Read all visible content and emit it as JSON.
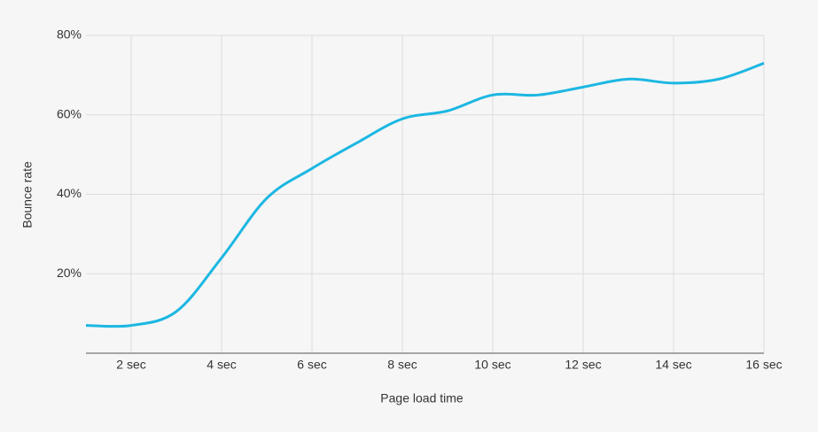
{
  "chart_data": {
    "type": "line",
    "x_label": "Page load time",
    "y_label": "Bounce rate",
    "x": [
      1,
      2,
      3,
      4,
      5,
      6,
      7,
      8,
      9,
      10,
      11,
      12,
      13,
      14,
      15,
      16
    ],
    "series": [
      {
        "name": "Bounce rate",
        "color": "#1cb7e2",
        "values": [
          7,
          7,
          10.5,
          24,
          39,
          46.5,
          53,
          59,
          61,
          65,
          65,
          67,
          69,
          68,
          69,
          73
        ]
      }
    ],
    "xlim": [
      1,
      16
    ],
    "xticks": [
      {
        "value": 2,
        "label": "2 sec"
      },
      {
        "value": 4,
        "label": "4 sec"
      },
      {
        "value": 6,
        "label": "6 sec"
      },
      {
        "value": 8,
        "label": "8 sec"
      },
      {
        "value": 10,
        "label": "10 sec"
      },
      {
        "value": 12,
        "label": "12 sec"
      },
      {
        "value": 14,
        "label": "14 sec"
      },
      {
        "value": 16,
        "label": "16 sec"
      }
    ],
    "ylim": [
      0,
      80
    ],
    "yticks": [
      {
        "value": 20,
        "label": "20%"
      },
      {
        "value": 40,
        "label": "40%"
      },
      {
        "value": 60,
        "label": "60%"
      },
      {
        "value": 80,
        "label": "80%"
      }
    ],
    "grid": true
  }
}
